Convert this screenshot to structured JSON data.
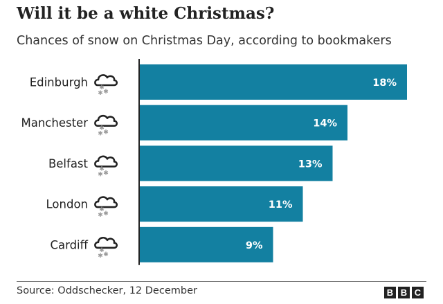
{
  "header": {
    "title": "Will it be a white Christmas?",
    "subtitle": "Chances of snow on Christmas Day, according to bookmakers"
  },
  "footer": {
    "source": "Source: Oddschecker, 12 December",
    "logo_letters": [
      "B",
      "B",
      "C"
    ]
  },
  "colors": {
    "bar": "#1380A1",
    "bar_label": "#ffffff",
    "axis": "#222222",
    "icon": "#222222",
    "snowflake": "#9a9a9a"
  },
  "icons": {
    "row_icon": "snow-cloud-icon"
  },
  "chart_data": {
    "type": "bar",
    "orientation": "horizontal",
    "title": "Will it be a white Christmas?",
    "subtitle": "Chances of snow on Christmas Day, according to bookmakers",
    "categories": [
      "Edinburgh",
      "Manchester",
      "Belfast",
      "London",
      "Cardiff"
    ],
    "values": [
      18,
      14,
      13,
      11,
      9
    ],
    "value_labels": [
      "18%",
      "14%",
      "13%",
      "11%",
      "9%"
    ],
    "unit": "%",
    "xlim": [
      0,
      18
    ],
    "grid": false,
    "legend": "none"
  }
}
